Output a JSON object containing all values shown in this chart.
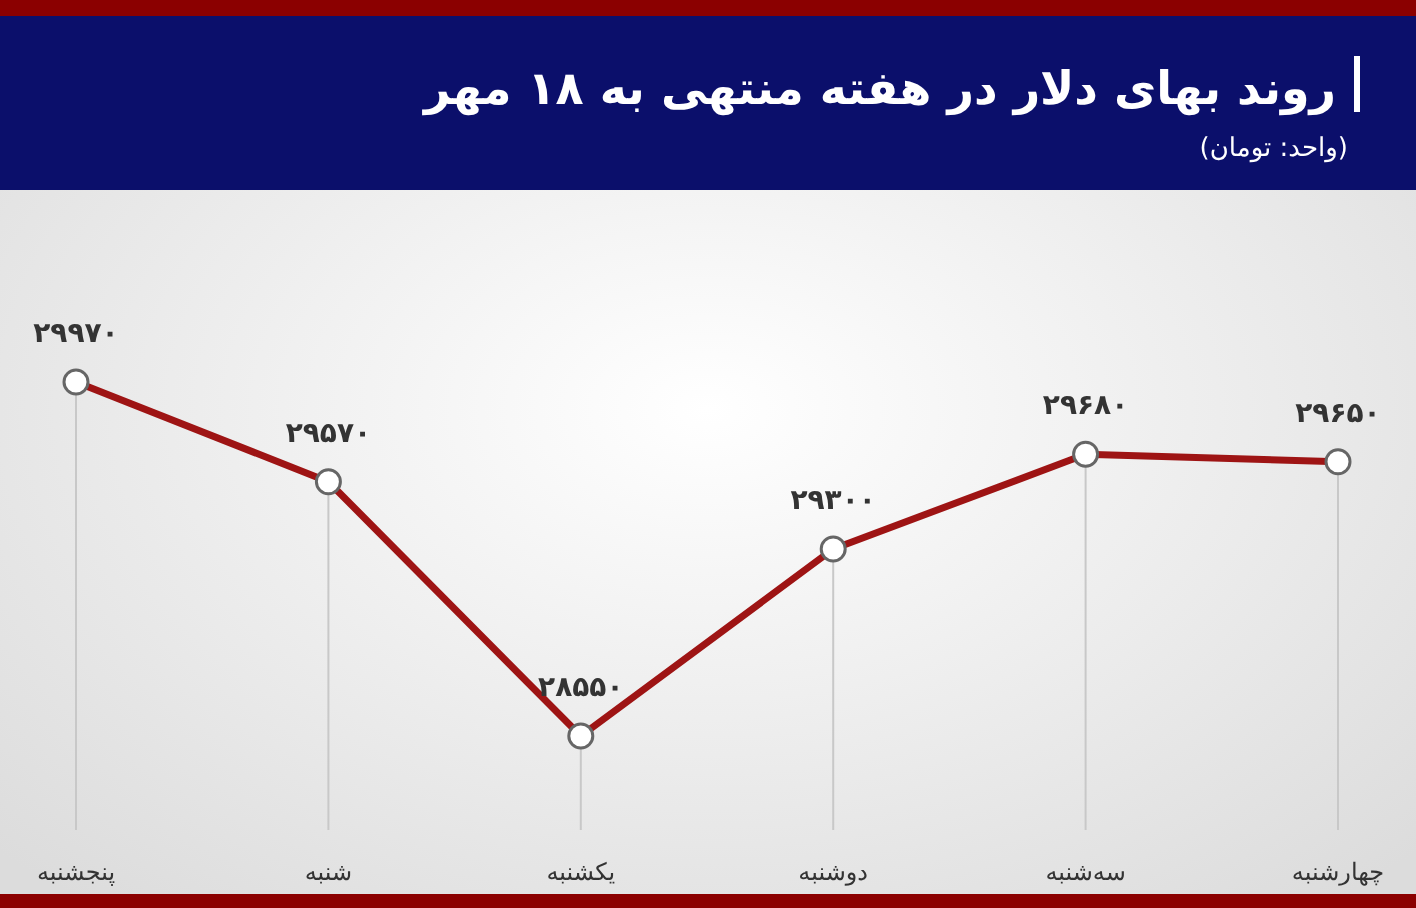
{
  "chart_data": {
    "type": "line",
    "title": "روند بهای دلار در هفته منتهی به ۱۸ مهر",
    "subtitle": "(واحد: تومان)",
    "categories": [
      "پنجشنبه",
      "شنبه",
      "یکشنبه",
      "دوشنبه",
      "سه‌شنبه",
      "چهارشنبه"
    ],
    "values": [
      29970,
      29570,
      28550,
      29300,
      29680,
      29650
    ],
    "value_labels": [
      "۲۹۹۷۰",
      "۲۹۵۷۰",
      "۲۸۵۵۰",
      "۲۹۳۰۰",
      "۲۹۶۸۰",
      "۲۹۶۵۰"
    ],
    "color": "#9e1414",
    "marker": "circle",
    "line_style": "solid",
    "grid": "x"
  }
}
